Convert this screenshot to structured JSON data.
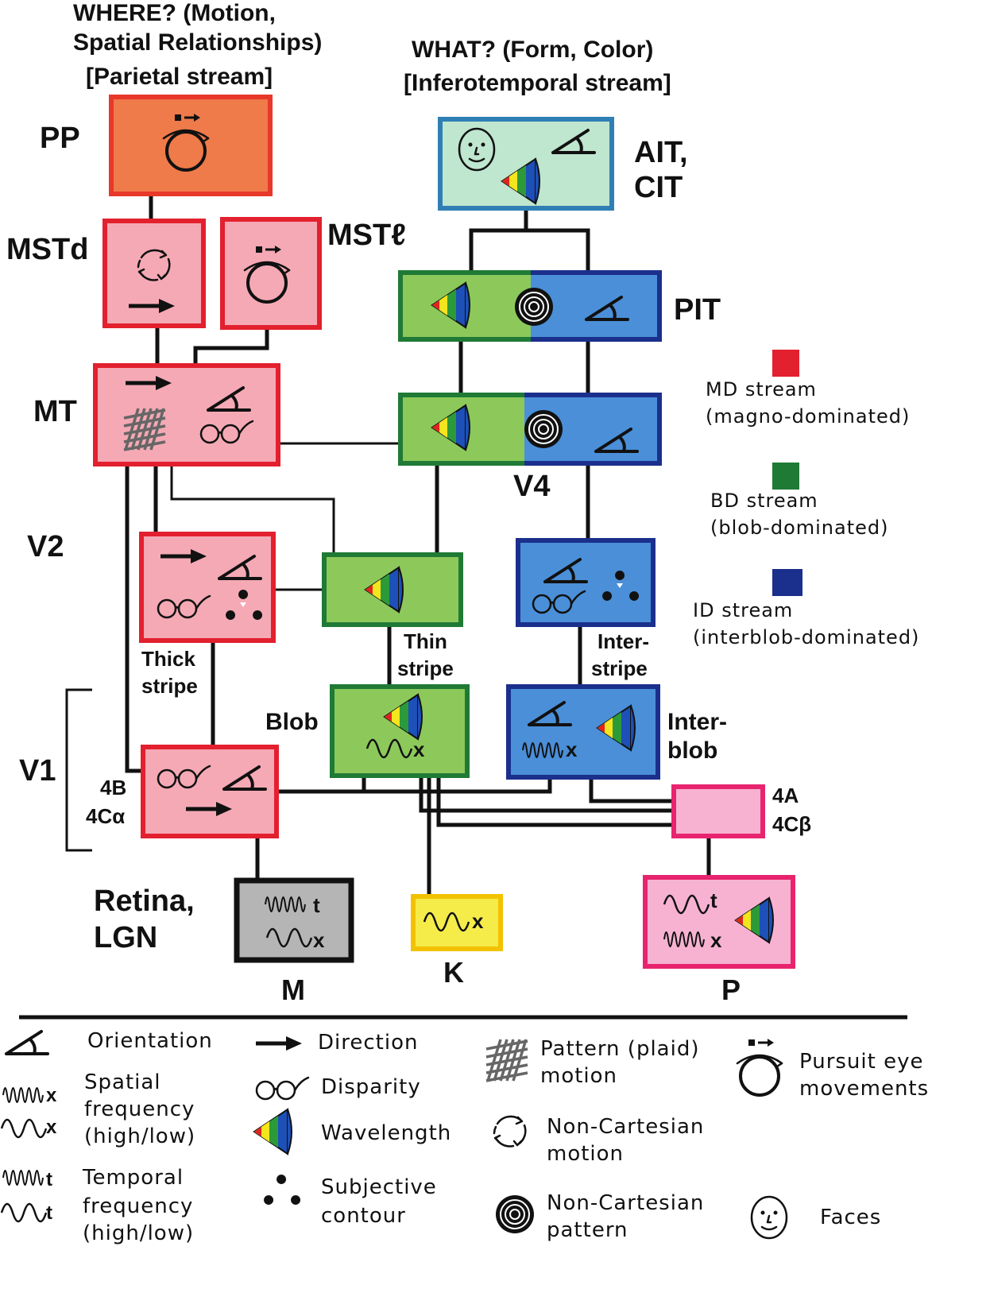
{
  "headers": {
    "where_line1": "WHERE?  (Motion,",
    "where_line2": "Spatial Relationships)",
    "where_line3": "[Parietal stream]",
    "what_line1": "WHAT?  (Form, Color)",
    "what_line2": "[Inferotemporal stream]"
  },
  "areas": {
    "pp": "PP",
    "mstd": "MSTd",
    "mstl": "MSTℓ",
    "mt": "MT",
    "v2": "V2",
    "v1": "V1",
    "ait_line1": "AIT,",
    "ait_line2": "CIT",
    "pit": "PIT",
    "v4": "V4",
    "thick_line1": "Thick",
    "thick_line2": "stripe",
    "thin_line1": "Thin",
    "thin_line2": "stripe",
    "inter_line1": "Inter-",
    "inter_line2": "stripe",
    "blob": "Blob",
    "interblob_line1": "Inter-",
    "interblob_line2": "blob",
    "layer_4b": "4B",
    "layer_4ca": "4Cα",
    "layer_4a": "4A",
    "layer_4cb": "4Cβ",
    "retina_line1": "Retina,",
    "retina_line2": "LGN",
    "m": "M",
    "k": "K",
    "p": "P"
  },
  "streams": {
    "md_title": "MD   stream",
    "md_sub": "(magno-dominated)",
    "md_color": "#e3202e",
    "bd_title": "BD stream",
    "bd_sub": "(blob-dominated)",
    "bd_color": "#1f7a35",
    "id_title": "ID stream",
    "id_sub": "(interblob-dominated)",
    "id_color": "#1b2f8c"
  },
  "icon_glyphs": {
    "x": "x",
    "t": "t"
  },
  "legend": {
    "orientation": "Orientation",
    "spatial_1": "Spatial",
    "spatial_2": "frequency",
    "spatial_3": "(high/low)",
    "temporal_1": "Temporal",
    "temporal_2": "frequency",
    "temporal_3": "(high/low)",
    "direction": "Direction",
    "disparity": "Disparity",
    "wavelength": "Wavelength",
    "subjective_1": "Subjective",
    "subjective_2": "contour",
    "pattern_1": "Pattern (plaid)",
    "pattern_2": "motion",
    "noncart_motion_1": "Non-Cartesian",
    "noncart_motion_2": "motion",
    "noncart_pattern_1": "Non-Cartesian",
    "noncart_pattern_2": "pattern",
    "pursuit_1": "Pursuit eye",
    "pursuit_2": "movements",
    "faces": "Faces"
  },
  "colors": {
    "md_fill": "#f5a9b5",
    "md_border": "#e3202e",
    "pp_fill": "#ef7a4a",
    "pp_border": "#e8382a",
    "bd_fill": "#8cc95a",
    "bd_border": "#1f7a35",
    "id_fill": "#4a8fd8",
    "id_border": "#1b2f8c",
    "ait_fill": "#bfe6cf",
    "ait_border": "#2f7fb5",
    "m_fill": "#b5b5b5",
    "k_fill": "#f5ec4a",
    "k_border": "#f2c200",
    "p_fill": "#f7b2d2",
    "p_border": "#e8246e"
  }
}
